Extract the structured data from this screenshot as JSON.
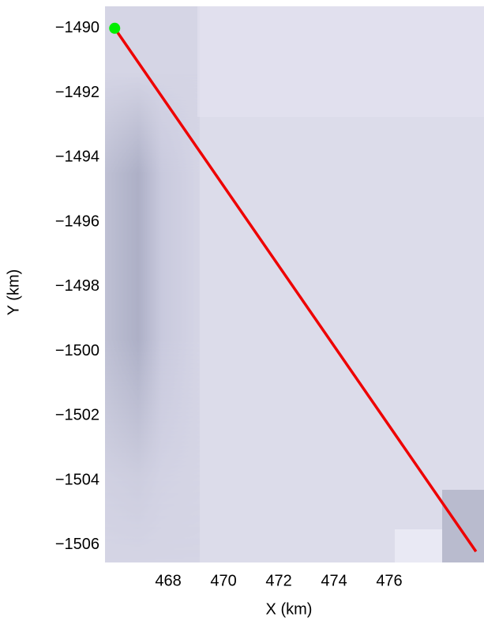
{
  "chart_data": {
    "type": "line",
    "xlabel": "X (km)",
    "ylabel": "Y (km)",
    "xlim": [
      465.71,
      479.43
    ],
    "ylim": [
      -1506.54,
      -1489.32
    ],
    "xticks": [
      468,
      470,
      472,
      474,
      476
    ],
    "yticks": [
      {
        "value": -1490,
        "label": "−1490"
      },
      {
        "value": -1492,
        "label": "−1492"
      },
      {
        "value": -1494,
        "label": "−1494"
      },
      {
        "value": -1496,
        "label": "−1496"
      },
      {
        "value": -1498,
        "label": "−1498"
      },
      {
        "value": -1500,
        "label": "−1500"
      },
      {
        "value": -1502,
        "label": "−1502"
      },
      {
        "value": -1504,
        "label": "−1504"
      },
      {
        "value": -1506,
        "label": "−1506"
      }
    ],
    "grid": false,
    "series": [
      {
        "style": "line",
        "color": "#ee0000",
        "x": [
          466.06,
          479.14
        ],
        "values": [
          -1490,
          -1506.2
        ]
      },
      {
        "style": "point",
        "color": "#00ee00",
        "x": [
          466.06
        ],
        "values": [
          -1490
        ]
      }
    ]
  }
}
